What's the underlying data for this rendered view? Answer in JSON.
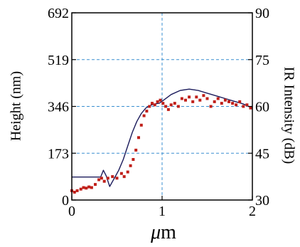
{
  "chart_data": {
    "type": "line",
    "xlabel_symbol": "μ",
    "xlabel_unit": "m",
    "ylabel_left": "Height (nm)",
    "ylabel_right": "IR Intensity (dB)",
    "x_ticks": [
      0,
      1,
      2
    ],
    "y_left_ticks": [
      0,
      173,
      346,
      519,
      692
    ],
    "y_right_ticks": [
      30,
      45,
      60,
      75,
      90
    ],
    "xlim": [
      0,
      2
    ],
    "ylim_left": [
      0,
      692
    ],
    "ylim_right": [
      30,
      90
    ],
    "grid": "dashed",
    "colors": {
      "line": "#1c1c5c",
      "points": "#c0201a",
      "grid": "#3a8fd0",
      "axis": "#000000"
    },
    "series": [
      {
        "type": "line",
        "axis": "left",
        "x": [
          0,
          0.32,
          0.35,
          0.38,
          0.42,
          0.47,
          0.52,
          0.57,
          0.62,
          0.67,
          0.72,
          0.77,
          0.82,
          0.87,
          0.92,
          0.97,
          1.02,
          1.1,
          1.2,
          1.3,
          1.4,
          1.5,
          1.6,
          1.7,
          1.8,
          1.9,
          2.0
        ],
        "y": [
          85,
          85,
          110,
          90,
          50,
          80,
          110,
          150,
          200,
          250,
          290,
          320,
          340,
          350,
          355,
          358,
          370,
          390,
          405,
          410,
          405,
          395,
          385,
          375,
          365,
          355,
          340
        ]
      },
      {
        "type": "scatter",
        "axis": "right",
        "x": [
          0.0,
          0.03,
          0.06,
          0.1,
          0.13,
          0.16,
          0.19,
          0.22,
          0.26,
          0.3,
          0.33,
          0.36,
          0.4,
          0.45,
          0.5,
          0.55,
          0.58,
          0.62,
          0.65,
          0.68,
          0.71,
          0.74,
          0.77,
          0.8,
          0.83,
          0.86,
          0.89,
          0.92,
          0.95,
          0.98,
          1.01,
          1.04,
          1.07,
          1.1,
          1.14,
          1.18,
          1.22,
          1.26,
          1.3,
          1.34,
          1.38,
          1.42,
          1.46,
          1.5,
          1.54,
          1.58,
          1.62,
          1.66,
          1.7,
          1.74,
          1.78,
          1.82,
          1.86,
          1.9,
          1.94,
          1.98
        ],
        "y": [
          33.0,
          32.5,
          33.0,
          33.5,
          34.0,
          33.8,
          34.2,
          34.0,
          35.0,
          36.5,
          37.0,
          36.0,
          37.0,
          37.5,
          37.0,
          38.5,
          37.5,
          39.0,
          41.0,
          43.0,
          46.0,
          50.0,
          54.0,
          57.0,
          58.5,
          60.0,
          61.0,
          60.5,
          61.5,
          62.0,
          61.0,
          60.0,
          59.0,
          60.5,
          61.0,
          60.0,
          62.5,
          62.0,
          63.0,
          61.5,
          63.0,
          62.0,
          63.5,
          62.5,
          60.0,
          61.5,
          62.5,
          61.0,
          62.0,
          61.5,
          61.0,
          60.5,
          61.5,
          60.0,
          60.5,
          59.5
        ]
      }
    ]
  }
}
